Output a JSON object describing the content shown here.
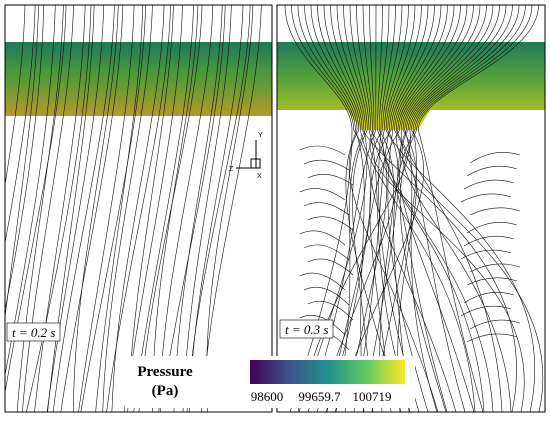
{
  "panels": [
    {
      "label": "t = 0.2 s"
    },
    {
      "label": "t = 0.3 s"
    }
  ],
  "axes_triad": {
    "y": "Y",
    "z": "Z",
    "x": "X"
  },
  "colorbar": {
    "title": "Pressure",
    "unit": "(Pa)",
    "ticks": [
      98600,
      99659.7,
      100719
    ]
  }
}
